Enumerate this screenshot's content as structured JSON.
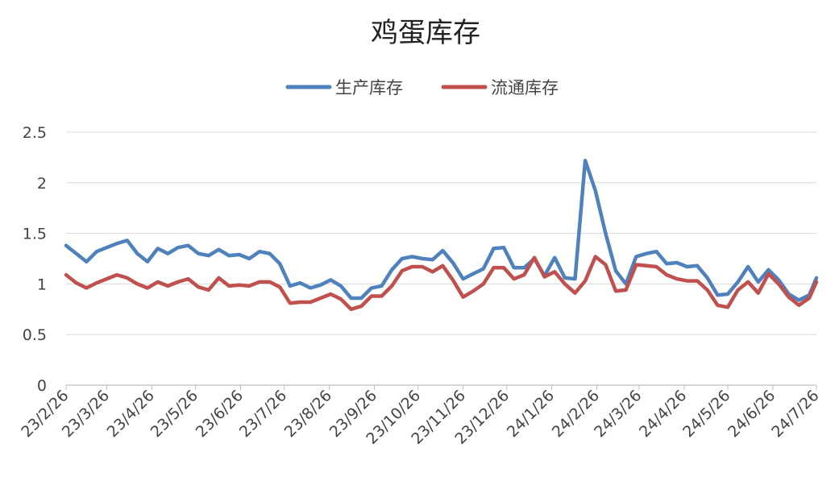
{
  "chart_data": {
    "type": "line",
    "title": "鸡蛋库存",
    "xlabel": "",
    "ylabel": "",
    "ylim": [
      0,
      2.5
    ],
    "yticks": [
      "0",
      "0.5",
      "1",
      "1.5",
      "2",
      "2.5"
    ],
    "xticks": [
      "23/2/26",
      "23/3/26",
      "23/4/26",
      "23/5/26",
      "23/6/26",
      "23/7/26",
      "23/8/26",
      "23/9/26",
      "23/10/26",
      "23/11/26",
      "23/12/26",
      "24/1/26",
      "24/2/26",
      "24/3/26",
      "24/4/26",
      "24/5/26",
      "24/6/26",
      "24/7/26"
    ],
    "grid": true,
    "legend_position": "top-center",
    "x_start": "2023-02-26",
    "x_end": "2024-07-26",
    "series": [
      {
        "name": "生产库存",
        "color": "#4f81bd",
        "x": [
          "2023-02-26",
          "2023-03-05",
          "2023-03-12",
          "2023-03-19",
          "2023-03-26",
          "2023-04-02",
          "2023-04-09",
          "2023-04-16",
          "2023-04-23",
          "2023-04-30",
          "2023-05-07",
          "2023-05-14",
          "2023-05-21",
          "2023-05-28",
          "2023-06-04",
          "2023-06-11",
          "2023-06-18",
          "2023-06-25",
          "2023-07-02",
          "2023-07-09",
          "2023-07-16",
          "2023-07-23",
          "2023-07-30",
          "2023-08-06",
          "2023-08-13",
          "2023-08-20",
          "2023-08-27",
          "2023-09-03",
          "2023-09-10",
          "2023-09-17",
          "2023-09-24",
          "2023-10-01",
          "2023-10-08",
          "2023-10-15",
          "2023-10-22",
          "2023-10-29",
          "2023-11-05",
          "2023-11-12",
          "2023-11-19",
          "2023-11-26",
          "2023-12-03",
          "2023-12-10",
          "2023-12-17",
          "2023-12-24",
          "2023-12-31",
          "2024-01-07",
          "2024-01-14",
          "2024-01-21",
          "2024-01-28",
          "2024-02-04",
          "2024-02-11",
          "2024-02-18",
          "2024-02-25",
          "2024-03-03",
          "2024-03-10",
          "2024-03-17",
          "2024-03-24",
          "2024-03-31",
          "2024-04-07",
          "2024-04-14",
          "2024-04-21",
          "2024-04-28",
          "2024-05-05",
          "2024-05-12",
          "2024-05-19",
          "2024-05-26",
          "2024-06-02",
          "2024-06-09",
          "2024-06-16",
          "2024-06-23",
          "2024-06-30",
          "2024-07-07",
          "2024-07-14",
          "2024-07-21",
          "2024-07-26"
        ],
        "values": [
          1.38,
          1.3,
          1.22,
          1.32,
          1.36,
          1.4,
          1.43,
          1.3,
          1.22,
          1.35,
          1.3,
          1.36,
          1.38,
          1.3,
          1.28,
          1.34,
          1.28,
          1.29,
          1.25,
          1.32,
          1.3,
          1.2,
          0.98,
          1.01,
          0.96,
          0.99,
          1.04,
          0.98,
          0.86,
          0.86,
          0.96,
          0.98,
          1.14,
          1.25,
          1.27,
          1.25,
          1.24,
          1.33,
          1.21,
          1.05,
          1.1,
          1.15,
          1.35,
          1.36,
          1.16,
          1.16,
          1.25,
          1.08,
          1.26,
          1.06,
          1.05,
          2.22,
          1.92,
          1.5,
          1.13,
          1.0,
          1.27,
          1.3,
          1.32,
          1.2,
          1.21,
          1.17,
          1.18,
          1.06,
          0.89,
          0.9,
          1.02,
          1.17,
          1.02,
          1.14,
          1.04,
          0.9,
          0.84,
          0.89,
          1.06
        ]
      },
      {
        "name": "流通库存",
        "color": "#c0504d",
        "x": [
          "2023-02-26",
          "2023-03-05",
          "2023-03-12",
          "2023-03-19",
          "2023-03-26",
          "2023-04-02",
          "2023-04-09",
          "2023-04-16",
          "2023-04-23",
          "2023-04-30",
          "2023-05-07",
          "2023-05-14",
          "2023-05-21",
          "2023-05-28",
          "2023-06-04",
          "2023-06-11",
          "2023-06-18",
          "2023-06-25",
          "2023-07-02",
          "2023-07-09",
          "2023-07-16",
          "2023-07-23",
          "2023-07-30",
          "2023-08-06",
          "2023-08-13",
          "2023-08-20",
          "2023-08-27",
          "2023-09-03",
          "2023-09-10",
          "2023-09-17",
          "2023-09-24",
          "2023-10-01",
          "2023-10-08",
          "2023-10-15",
          "2023-10-22",
          "2023-10-29",
          "2023-11-05",
          "2023-11-12",
          "2023-11-19",
          "2023-11-26",
          "2023-12-03",
          "2023-12-10",
          "2023-12-17",
          "2023-12-24",
          "2023-12-31",
          "2024-01-07",
          "2024-01-14",
          "2024-01-21",
          "2024-01-28",
          "2024-02-04",
          "2024-02-11",
          "2024-02-18",
          "2024-02-25",
          "2024-03-03",
          "2024-03-10",
          "2024-03-17",
          "2024-03-24",
          "2024-03-31",
          "2024-04-07",
          "2024-04-14",
          "2024-04-21",
          "2024-04-28",
          "2024-05-05",
          "2024-05-12",
          "2024-05-19",
          "2024-05-26",
          "2024-06-02",
          "2024-06-09",
          "2024-06-16",
          "2024-06-23",
          "2024-06-30",
          "2024-07-07",
          "2024-07-14",
          "2024-07-21",
          "2024-07-26"
        ],
        "values": [
          1.09,
          1.01,
          0.96,
          1.01,
          1.05,
          1.09,
          1.06,
          1.0,
          0.96,
          1.02,
          0.98,
          1.02,
          1.05,
          0.97,
          0.94,
          1.06,
          0.98,
          0.99,
          0.98,
          1.02,
          1.02,
          0.97,
          0.81,
          0.82,
          0.82,
          0.86,
          0.9,
          0.85,
          0.75,
          0.78,
          0.88,
          0.88,
          0.98,
          1.13,
          1.17,
          1.17,
          1.12,
          1.18,
          1.04,
          0.87,
          0.93,
          1.0,
          1.16,
          1.16,
          1.05,
          1.09,
          1.26,
          1.07,
          1.12,
          1.0,
          0.91,
          1.03,
          1.27,
          1.19,
          0.93,
          0.94,
          1.19,
          1.18,
          1.17,
          1.09,
          1.05,
          1.03,
          1.03,
          0.94,
          0.79,
          0.77,
          0.94,
          1.02,
          0.91,
          1.1,
          1.0,
          0.87,
          0.79,
          0.86,
          1.02
        ]
      }
    ]
  }
}
